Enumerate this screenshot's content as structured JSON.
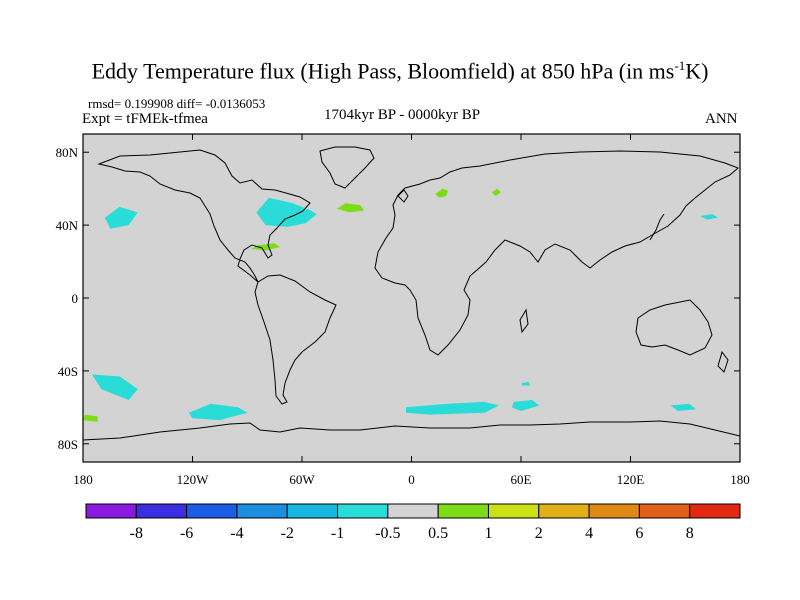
{
  "title": "Eddy Temperature flux (High Pass, Bloomfield) at 850 hPa (in ms",
  "title_sup": "-1",
  "title_end": "K)",
  "stats": "rmsd= 0.199908 diff= -0.0136053",
  "experiment": "Expt = tFMEk-tfmea",
  "period": "1704kyr BP - 0000kyr BP",
  "season": "ANN",
  "lat_ticks": [
    {
      "value": 80,
      "label": "80N"
    },
    {
      "value": 40,
      "label": "40N"
    },
    {
      "value": 0,
      "label": "0"
    },
    {
      "value": -40,
      "label": "40S"
    },
    {
      "value": -80,
      "label": "80S"
    }
  ],
  "lon_ticks": [
    {
      "value": -180,
      "label": "180"
    },
    {
      "value": -120,
      "label": "120W"
    },
    {
      "value": -60,
      "label": "60W"
    },
    {
      "value": 0,
      "label": "0"
    },
    {
      "value": 60,
      "label": "60E"
    },
    {
      "value": 120,
      "label": "120E"
    },
    {
      "value": 180,
      "label": "180"
    }
  ],
  "map_background": "#d3d3d3",
  "colorbar": {
    "colors": [
      "#8b1ae0",
      "#3a2ee0",
      "#1a5ee8",
      "#1c8fe0",
      "#17b8e0",
      "#2adcd8",
      "#d3d3d3",
      "#7edc16",
      "#cce016",
      "#e0b016",
      "#e08a16",
      "#e0601a",
      "#e02a12"
    ],
    "labels": [
      "-8",
      "-6",
      "-4",
      "-2",
      "-1",
      "-0.5",
      "0.5",
      "1",
      "2",
      "4",
      "6",
      "8"
    ]
  },
  "regions": [
    {
      "name": "north-pacific-negative",
      "color": "#2adcd8",
      "points": [
        [
          -168,
          44
        ],
        [
          -160,
          50
        ],
        [
          -150,
          47
        ],
        [
          -155,
          40
        ],
        [
          -165,
          38
        ]
      ]
    },
    {
      "name": "north-atlantic-west-negative",
      "color": "#2adcd8",
      "points": [
        [
          -85,
          47
        ],
        [
          -78,
          55
        ],
        [
          -65,
          52
        ],
        [
          -55,
          48
        ],
        [
          -52,
          46
        ],
        [
          -58,
          41
        ],
        [
          -68,
          39
        ],
        [
          -80,
          40
        ]
      ]
    },
    {
      "name": "north-atlantic-positive",
      "color": "#7edc16",
      "points": [
        [
          -41,
          49
        ],
        [
          -36,
          52
        ],
        [
          -28,
          51
        ],
        [
          -26,
          48
        ],
        [
          -34,
          47
        ]
      ]
    },
    {
      "name": "europe-positive",
      "color": "#7edc16",
      "points": [
        [
          13,
          57
        ],
        [
          17,
          60
        ],
        [
          20,
          59
        ],
        [
          19,
          56
        ],
        [
          15,
          55
        ]
      ]
    },
    {
      "name": "russia-positive",
      "color": "#7edc16",
      "points": [
        [
          44,
          58
        ],
        [
          47,
          60
        ],
        [
          49,
          58
        ],
        [
          46,
          56
        ]
      ]
    },
    {
      "name": "gulf-positive",
      "color": "#7edc16",
      "points": [
        [
          -88,
          27
        ],
        [
          -84,
          29
        ],
        [
          -75,
          30
        ],
        [
          -72,
          28
        ],
        [
          -80,
          26
        ]
      ]
    },
    {
      "name": "north-west-pacific-negative",
      "color": "#2adcd8",
      "points": [
        [
          158,
          45
        ],
        [
          165,
          46
        ],
        [
          168,
          44
        ],
        [
          162,
          43
        ]
      ]
    },
    {
      "name": "south-pacific-west-negative",
      "color": "#2adcd8",
      "points": [
        [
          -175,
          -42
        ],
        [
          -160,
          -43
        ],
        [
          -150,
          -50
        ],
        [
          -155,
          -56
        ],
        [
          -170,
          -50
        ]
      ]
    },
    {
      "name": "south-pacific-east-negative",
      "color": "#2adcd8",
      "points": [
        [
          -122,
          -63
        ],
        [
          -110,
          -58
        ],
        [
          -95,
          -60
        ],
        [
          -90,
          -63
        ],
        [
          -105,
          -67
        ],
        [
          -120,
          -66
        ]
      ]
    },
    {
      "name": "south-atlantic-indian-negative",
      "color": "#2adcd8",
      "points": [
        [
          -3,
          -60
        ],
        [
          20,
          -58
        ],
        [
          40,
          -57
        ],
        [
          48,
          -59
        ],
        [
          40,
          -63
        ],
        [
          10,
          -64
        ],
        [
          -3,
          -63
        ]
      ]
    },
    {
      "name": "south-indian-negative",
      "color": "#2adcd8",
      "points": [
        [
          56,
          -57
        ],
        [
          66,
          -56
        ],
        [
          70,
          -59
        ],
        [
          60,
          -62
        ],
        [
          55,
          -60
        ]
      ]
    },
    {
      "name": "south-tasman-negative",
      "color": "#2adcd8",
      "points": [
        [
          142,
          -59
        ],
        [
          152,
          -58
        ],
        [
          156,
          -61
        ],
        [
          146,
          -62
        ]
      ]
    },
    {
      "name": "south-indian-small-negative",
      "color": "#2adcd8",
      "points": [
        [
          60,
          -47
        ],
        [
          64,
          -46
        ],
        [
          65,
          -48
        ],
        [
          61,
          -48
        ]
      ]
    },
    {
      "name": "far-south-pacific-positive",
      "color": "#7edc16",
      "points": [
        [
          -179,
          -64
        ],
        [
          -172,
          -65
        ],
        [
          -172,
          -68
        ],
        [
          -180,
          -67
        ]
      ]
    }
  ]
}
